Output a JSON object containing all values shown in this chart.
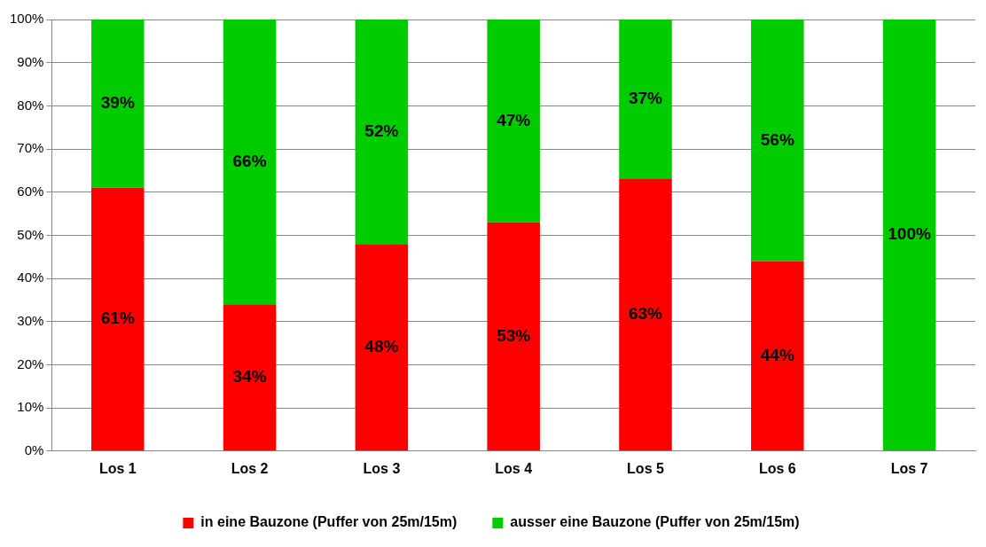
{
  "chart_data": {
    "type": "bar",
    "stacked": true,
    "categories": [
      "Los 1",
      "Los 2",
      "Los 3",
      "Los 4",
      "Los 5",
      "Los 6",
      "Los 7"
    ],
    "series": [
      {
        "name": "in eine Bauzone (Puffer von 25m/15m)",
        "color": "#ff0000",
        "values": [
          61,
          34,
          48,
          53,
          63,
          44,
          0
        ],
        "value_labels": [
          "61%",
          "34%",
          "48%",
          "53%",
          "63%",
          "44%",
          null
        ]
      },
      {
        "name": "ausser eine Bauzone (Puffer von 25m/15m)",
        "color": "#00cc00",
        "values": [
          39,
          66,
          52,
          47,
          37,
          56,
          100
        ],
        "value_labels": [
          "39%",
          "66%",
          "52%",
          "47%",
          "37%",
          "56%",
          "100%"
        ]
      }
    ],
    "ylim": [
      0,
      100
    ],
    "yticks": [
      {
        "value": 0,
        "label": "0%"
      },
      {
        "value": 10,
        "label": "10%"
      },
      {
        "value": 20,
        "label": "20%"
      },
      {
        "value": 30,
        "label": "30%"
      },
      {
        "value": 40,
        "label": "40%"
      },
      {
        "value": 50,
        "label": "50%"
      },
      {
        "value": 60,
        "label": "60%"
      },
      {
        "value": 70,
        "label": "70%"
      },
      {
        "value": 80,
        "label": "80%"
      },
      {
        "value": 90,
        "label": "90%"
      },
      {
        "value": 100,
        "label": "100%"
      }
    ],
    "grid": "y",
    "legend": "bottom"
  }
}
